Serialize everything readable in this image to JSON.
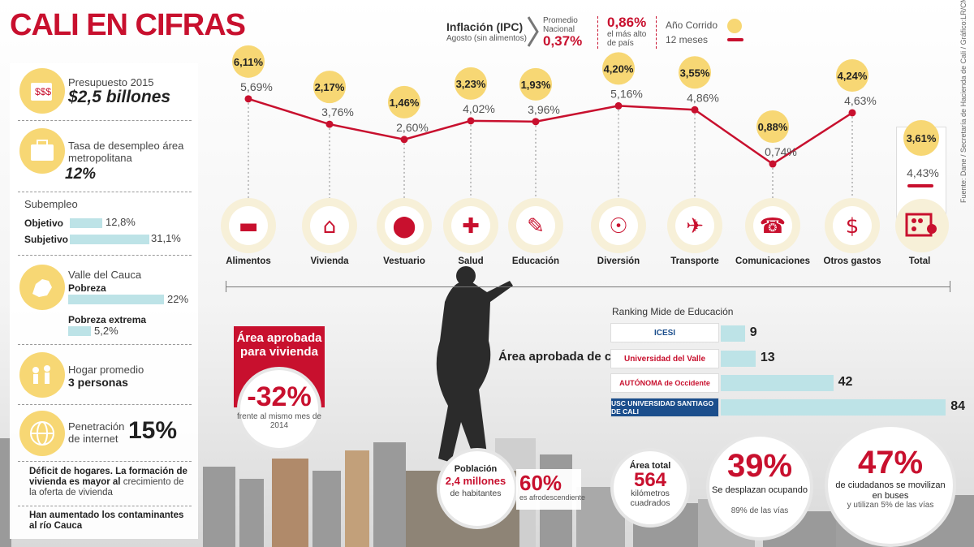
{
  "title": "CALI EN CIFRAS",
  "colors": {
    "accent": "#c8102e",
    "yellow": "#f7d774",
    "bar": "#bde3e7"
  },
  "header": {
    "ipc_title": "Inflación (IPC)",
    "ipc_sub": "Agosto (sin alimentos)",
    "promedio_label": "Promedio Nacional",
    "promedio_value": "0,37%",
    "highest_value": "0,86%",
    "highest_label": "el más alto de país",
    "legend_anio": "Año Corrido",
    "legend_12": "12 meses"
  },
  "sidebar": {
    "presupuesto_label": "Presupuesto 2015",
    "presupuesto_value": "$2,5 billones",
    "desempleo_label": "Tasa de desempleo área metropolitana",
    "desempleo_value": "12%",
    "subempleo_label": "Subempleo",
    "subempleo": [
      {
        "label": "Objetivo",
        "value": "12,8%",
        "num": 12.8
      },
      {
        "label": "Subjetivo",
        "value": "31,1%",
        "num": 31.1
      }
    ],
    "valle_label": "Valle del Cauca",
    "pobreza": [
      {
        "label": "Pobreza",
        "value": "22%",
        "num": 22
      },
      {
        "label": "Pobreza extrema",
        "value": "5,2%",
        "num": 5.2
      }
    ],
    "hogar_label": "Hogar promedio",
    "hogar_value": "3 personas",
    "internet_label": "Penetración de internet",
    "internet_value": "15%",
    "deficit_bold": "Déficit de hogares. La formación de vivienda es mayor al",
    "deficit_normal": "crecimiento de la oferta de vivienda",
    "contaminantes": "Han aumentado los contaminantes al río Cauca"
  },
  "chart_data": {
    "type": "line",
    "categories": [
      "Alimentos",
      "Vivienda",
      "Vestuario",
      "Salud",
      "Educación",
      "Diversión",
      "Transporte",
      "Comunicaciones",
      "Otros gastos"
    ],
    "series": [
      {
        "name": "12 meses",
        "values": [
          5.69,
          3.76,
          2.6,
          4.02,
          3.96,
          5.16,
          4.86,
          0.74,
          4.63
        ],
        "labels": [
          "5,69%",
          "3,76%",
          "2,60%",
          "4,02%",
          "3,96%",
          "5,16%",
          "4,86%",
          "0,74%",
          "4,63%"
        ]
      },
      {
        "name": "Año Corrido",
        "values": [
          6.11,
          2.17,
          1.46,
          3.23,
          1.93,
          4.2,
          3.55,
          0.88,
          4.24
        ],
        "labels": [
          "6,11%",
          "2,17%",
          "1,46%",
          "3,23%",
          "1,93%",
          "4,20%",
          "3,55%",
          "0,88%",
          "4,24%"
        ]
      }
    ],
    "total": {
      "label": "Total",
      "anio_corrido": "3,61%",
      "doce_meses": "4,43%"
    }
  },
  "source": "Fuente: Dane / Secretaría de Hacienda de Cali / Gráfico:LR/CM",
  "vivienda": {
    "title": "Área aprobada para vivienda",
    "value": "-32%",
    "sub": "frente al mismo mes de 2014"
  },
  "construccion": "Área aprobada de construcción",
  "ranking": {
    "title": "Ranking Mide de Educación",
    "items": [
      {
        "name": "ICESI",
        "value": 9
      },
      {
        "name": "Universidad del Valle",
        "value": 13
      },
      {
        "name": "AUTÓNOMA de Occidente",
        "value": 42
      },
      {
        "name": "USC UNIVERSIDAD SANTIAGO DE CALI",
        "value": 84
      }
    ]
  },
  "poblacion": {
    "title": "Población",
    "value": "2,4 millones",
    "sub": "de habitantes"
  },
  "afro": {
    "value": "60%",
    "sub": "es afrodescendiente"
  },
  "area_total": {
    "title": "Área total",
    "value": "564",
    "sub": "kilómetros cuadrados"
  },
  "desplazan": {
    "value": "39%",
    "sub": "Se desplazan ocupando",
    "sub2": "89% de las vías"
  },
  "buses": {
    "value": "47%",
    "sub": "de ciudadanos se movilizan en buses",
    "sub2": "y utilizan 5% de las vías"
  }
}
